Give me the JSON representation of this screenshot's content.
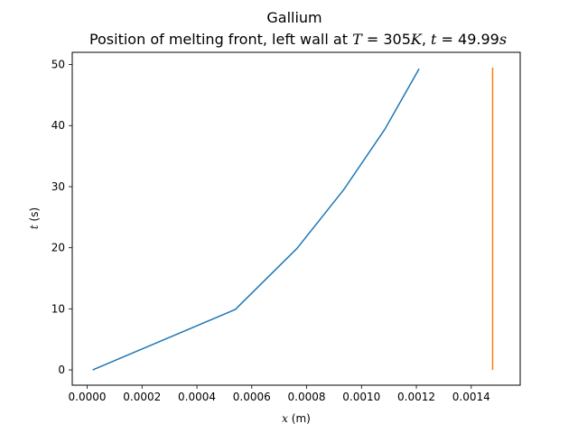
{
  "chart_data": {
    "type": "line",
    "title": "Gallium",
    "subtitle": {
      "prefix": "Position of melting front, left wall at ",
      "T_sym": "T",
      "T_val": " = 305",
      "K_sym": "K",
      "sep": ", ",
      "t_sym": "t",
      "t_val": " = 49.99",
      "s_sym": "s"
    },
    "xlabel": {
      "var": "x",
      "unit": " (m)"
    },
    "ylabel": {
      "var": "t",
      "unit": " (s)"
    },
    "xlim": [
      -5.45e-05,
      0.0015785
    ],
    "ylim": [
      -2.5,
      52.0
    ],
    "xticks": [
      0.0,
      0.0002,
      0.0004,
      0.0006,
      0.0008,
      0.001,
      0.0012,
      0.0014
    ],
    "xtick_labels": [
      "0.0000",
      "0.0002",
      "0.0004",
      "0.0006",
      "0.0008",
      "0.0010",
      "0.0012",
      "0.0014"
    ],
    "yticks": [
      0,
      10,
      20,
      30,
      40,
      50
    ],
    "ytick_labels": [
      "0",
      "10",
      "20",
      "30",
      "40",
      "50"
    ],
    "grid": false,
    "series": [
      {
        "color": "#1f77b4",
        "x": [
          2e-05,
          0.00054,
          0.000765,
          0.000935,
          0.001085,
          0.00121
        ],
        "y": [
          0.0,
          9.9,
          19.9,
          29.5,
          39.4,
          49.3
        ]
      },
      {
        "color": "#ff7f0e",
        "x": [
          0.001478,
          0.001478
        ],
        "y": [
          0.0,
          49.5
        ]
      }
    ]
  }
}
